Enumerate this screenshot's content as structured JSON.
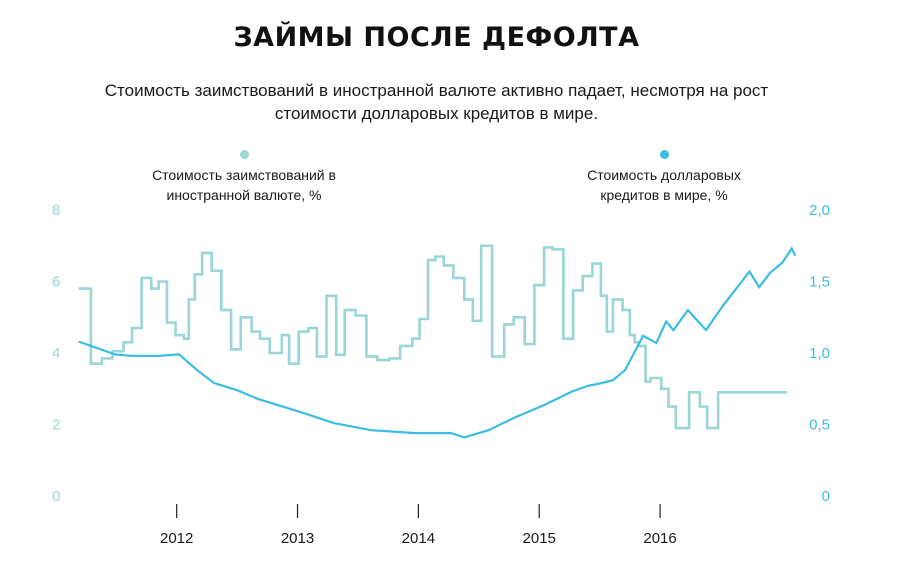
{
  "header": {
    "title": "ЗАЙМЫ ПОСЛЕ ДЕФОЛТА",
    "subtitle_line1": "Стоимость заимствований в иностранной валюте активно падает, несмотря на рост",
    "subtitle_line2": "стоимости долларовых кредитов в мире."
  },
  "legend": {
    "left": {
      "line1": "Стоимость заимствований в",
      "line2": "иностранной валюте, %",
      "color": "#9ad6d6"
    },
    "right": {
      "line1": "Стоимость долларовых",
      "line2": "кредитов в мире, %",
      "color": "#3bbde3"
    }
  },
  "chart_data": {
    "type": "line",
    "title": "ЗАЙМЫ ПОСЛЕ ДЕФОЛТА",
    "x_range": [
      2011.2,
      2017.1
    ],
    "x_ticks": [
      2012,
      2013,
      2014,
      2015,
      2016
    ],
    "x_tick_labels": [
      "2012",
      "2013",
      "2014",
      "2015",
      "2016"
    ],
    "y_left": {
      "range": [
        0,
        8
      ],
      "ticks": [
        0,
        2,
        4,
        6,
        8
      ],
      "tick_labels": [
        "0",
        "2",
        "4",
        "6",
        "8"
      ]
    },
    "y_right": {
      "range": [
        0,
        2.0
      ],
      "ticks": [
        0,
        0.5,
        1.0,
        1.5,
        2.0
      ],
      "tick_labels": [
        "0",
        "0,5",
        "1,0",
        "1,5",
        "2,0"
      ]
    },
    "grid": false,
    "series": [
      {
        "name": "Стоимость заимствований в иностранной валюте, %",
        "axis": "left",
        "step": true,
        "color": "#9ad6d6",
        "x": [
          2011.19,
          2011.29,
          2011.38,
          2011.47,
          2011.56,
          2011.63,
          2011.71,
          2011.79,
          2011.85,
          2011.92,
          2011.99,
          2012.06,
          2012.1,
          2012.15,
          2012.21,
          2012.29,
          2012.37,
          2012.45,
          2012.53,
          2012.62,
          2012.69,
          2012.77,
          2012.87,
          2012.93,
          2013.01,
          2013.09,
          2013.16,
          2013.24,
          2013.32,
          2013.39,
          2013.48,
          2013.57,
          2013.66,
          2013.76,
          2013.85,
          2013.95,
          2014.01,
          2014.08,
          2014.14,
          2014.21,
          2014.29,
          2014.38,
          2014.45,
          2014.52,
          2014.61,
          2014.71,
          2014.79,
          2014.88,
          2014.96,
          2015.04,
          2015.11,
          2015.2,
          2015.28,
          2015.36,
          2015.44,
          2015.51,
          2015.56,
          2015.61,
          2015.69,
          2015.75,
          2015.79,
          2015.82,
          2015.88,
          2015.92,
          2016.01,
          2016.07,
          2016.13,
          2016.24,
          2016.33,
          2016.39,
          2016.48,
          2016.6,
          2016.7,
          2016.8,
          2016.94,
          2017.05
        ],
        "values": [
          5.8,
          3.7,
          3.85,
          4.05,
          4.3,
          4.7,
          6.1,
          5.8,
          6.0,
          4.85,
          4.5,
          4.4,
          5.5,
          6.2,
          6.8,
          6.3,
          5.2,
          4.1,
          5.0,
          4.6,
          4.4,
          4.0,
          4.5,
          3.7,
          4.6,
          4.7,
          3.9,
          5.6,
          3.95,
          5.2,
          5.05,
          3.9,
          3.8,
          3.85,
          4.2,
          4.4,
          4.95,
          6.6,
          6.7,
          6.45,
          6.1,
          5.5,
          4.9,
          7.0,
          3.9,
          4.8,
          5.0,
          4.25,
          5.9,
          6.95,
          6.9,
          4.4,
          5.75,
          6.15,
          6.5,
          5.6,
          4.6,
          5.5,
          5.2,
          4.5,
          4.3,
          4.2,
          3.2,
          3.3,
          3.0,
          2.5,
          1.9,
          2.9,
          2.5,
          1.9,
          2.9,
          2.9,
          2.9,
          2.9,
          2.9,
          2.9
        ]
      },
      {
        "name": "Стоимость долларовых кредитов в мире, %",
        "axis": "right",
        "step": false,
        "color": "#3bbde3",
        "x": [
          2011.19,
          2011.49,
          2011.63,
          2011.85,
          2012.02,
          2012.17,
          2012.31,
          2012.5,
          2012.67,
          2012.86,
          2013.05,
          2013.3,
          2013.61,
          2013.79,
          2013.97,
          2014.14,
          2014.27,
          2014.38,
          2014.58,
          2014.8,
          2015.05,
          2015.27,
          2015.4,
          2015.52,
          2015.61,
          2015.71,
          2015.86,
          2015.97,
          2016.05,
          2016.11,
          2016.23,
          2016.38,
          2016.52,
          2016.74,
          2016.82,
          2016.91,
          2017.01,
          2017.09,
          2017.12
        ],
        "values": [
          1.08,
          0.99,
          0.98,
          0.98,
          0.99,
          0.88,
          0.79,
          0.74,
          0.68,
          0.63,
          0.58,
          0.51,
          0.46,
          0.45,
          0.44,
          0.44,
          0.44,
          0.41,
          0.46,
          0.55,
          0.64,
          0.73,
          0.77,
          0.79,
          0.81,
          0.88,
          1.12,
          1.07,
          1.22,
          1.16,
          1.3,
          1.16,
          1.33,
          1.57,
          1.46,
          1.56,
          1.63,
          1.73,
          1.68
        ]
      }
    ]
  }
}
